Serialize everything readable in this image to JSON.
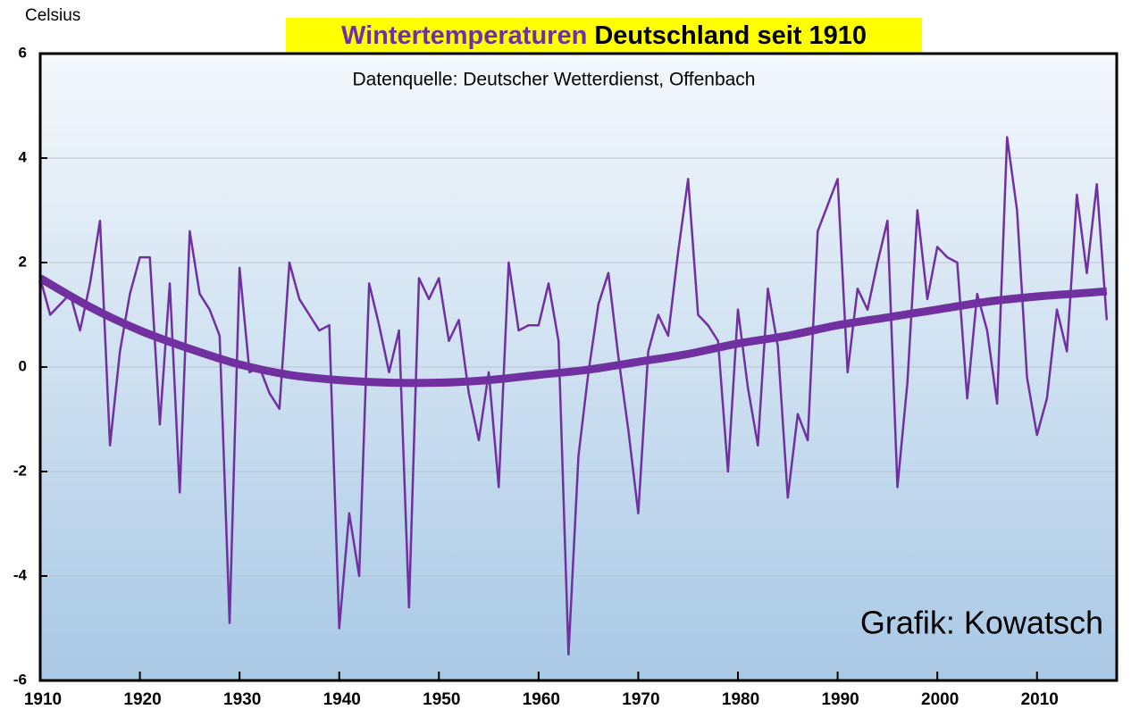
{
  "chart_data": {
    "type": "line",
    "title_parts": [
      {
        "text": "Wintertemperaturen",
        "color": "#7030a0"
      },
      {
        "text": "Deutschland seit 1910",
        "color": "#000000"
      }
    ],
    "title_background": "#ffff00",
    "subtitle": "Datenquelle: Deutscher Wetterdienst, Offenbach",
    "y_label": "Celsius",
    "annotation": "Grafik: Kowatsch",
    "x": [
      1910,
      1911,
      1912,
      1913,
      1914,
      1915,
      1916,
      1917,
      1918,
      1919,
      1920,
      1921,
      1922,
      1923,
      1924,
      1925,
      1926,
      1927,
      1928,
      1929,
      1930,
      1931,
      1932,
      1933,
      1934,
      1935,
      1936,
      1937,
      1938,
      1939,
      1940,
      1941,
      1942,
      1943,
      1944,
      1945,
      1946,
      1947,
      1948,
      1949,
      1950,
      1951,
      1952,
      1953,
      1954,
      1955,
      1956,
      1957,
      1958,
      1959,
      1960,
      1961,
      1962,
      1963,
      1964,
      1965,
      1966,
      1967,
      1968,
      1969,
      1970,
      1971,
      1972,
      1973,
      1974,
      1975,
      1976,
      1977,
      1978,
      1979,
      1980,
      1981,
      1982,
      1983,
      1984,
      1985,
      1986,
      1987,
      1988,
      1989,
      1990,
      1991,
      1992,
      1993,
      1994,
      1995,
      1996,
      1997,
      1998,
      1999,
      2000,
      2001,
      2002,
      2003,
      2004,
      2005,
      2006,
      2007,
      2008,
      2009,
      2010,
      2011,
      2012,
      2013,
      2014,
      2015,
      2016,
      2017
    ],
    "series": [
      {
        "color": "#7030a0",
        "values": [
          1.7,
          1.0,
          1.2,
          1.4,
          0.7,
          1.6,
          2.8,
          -1.5,
          0.3,
          1.4,
          2.1,
          2.1,
          -1.1,
          1.6,
          -2.4,
          2.6,
          1.4,
          1.1,
          0.6,
          -4.9,
          1.9,
          -0.1,
          0.0,
          -0.5,
          -0.8,
          2.0,
          1.3,
          1.0,
          0.7,
          0.8,
          -5.0,
          -2.8,
          -4.0,
          1.6,
          0.8,
          -0.1,
          0.7,
          -4.6,
          1.7,
          1.3,
          1.7,
          0.5,
          0.9,
          -0.5,
          -1.4,
          -0.1,
          -2.3,
          2.0,
          0.7,
          0.8,
          0.8,
          1.6,
          0.5,
          -5.5,
          -1.7,
          -0.1,
          1.2,
          1.8,
          0.2,
          -1.2,
          -2.8,
          0.3,
          1.0,
          0.6,
          2.2,
          3.6,
          1.0,
          0.8,
          0.5,
          -2.0,
          1.1,
          -0.4,
          -1.5,
          1.5,
          0.4,
          -2.5,
          -0.9,
          -1.4,
          2.6,
          3.1,
          3.6,
          -0.1,
          1.5,
          1.1,
          2.0,
          2.8,
          -2.3,
          -0.3,
          3.0,
          1.3,
          2.3,
          2.1,
          2.0,
          -0.6,
          1.4,
          0.7,
          -0.7,
          4.4,
          3.0,
          -0.2,
          -1.3,
          -0.6,
          1.1,
          0.3,
          3.3,
          1.8,
          3.5,
          0.9
        ]
      }
    ],
    "trend": {
      "color": "#7030a0",
      "x": [
        1910,
        1915,
        1920,
        1925,
        1930,
        1935,
        1940,
        1945,
        1950,
        1955,
        1960,
        1965,
        1970,
        1975,
        1980,
        1985,
        1990,
        1995,
        2000,
        2005,
        2010,
        2015,
        2017
      ],
      "values": [
        1.7,
        1.15,
        0.7,
        0.35,
        0.05,
        -0.15,
        -0.25,
        -0.3,
        -0.3,
        -0.25,
        -0.15,
        -0.05,
        0.1,
        0.25,
        0.45,
        0.6,
        0.8,
        0.95,
        1.1,
        1.25,
        1.35,
        1.42,
        1.45
      ]
    },
    "xlim": [
      1910,
      2018
    ],
    "xticks": [
      1910,
      1920,
      1930,
      1940,
      1950,
      1960,
      1970,
      1980,
      1990,
      2000,
      2010
    ],
    "ylim": [
      -6,
      6
    ],
    "yticks": [
      -6,
      -4,
      -2,
      0,
      2,
      4,
      6
    ],
    "grid": true
  }
}
